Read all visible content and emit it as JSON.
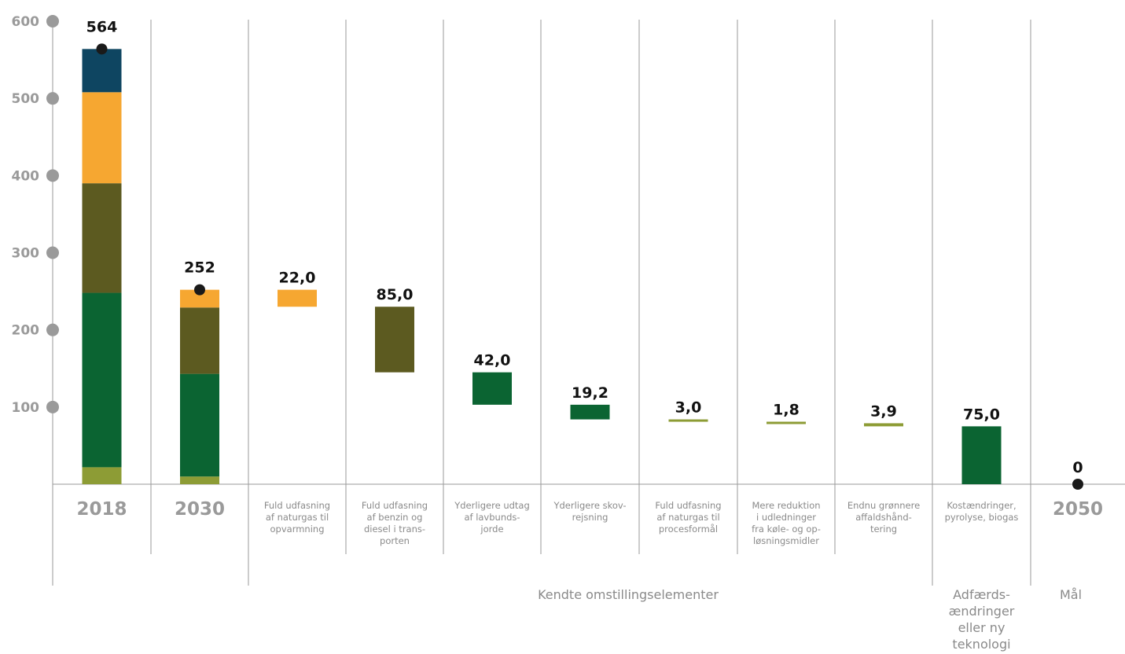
{
  "chart_data": {
    "type": "bar",
    "ylim": [
      0,
      600
    ],
    "yticks": [
      100,
      200,
      300,
      400,
      500,
      600
    ],
    "colors": {
      "dark_blue": "#0e4561",
      "orange": "#f6a731",
      "olive": "#5c5a20",
      "green": "#0b6432",
      "light_olive": "#8d9c35",
      "marker": "#1a1a1a",
      "axis": "#9a9a9a"
    },
    "stacks": [
      {
        "label": "2018",
        "total_label": "564",
        "total": 564,
        "segments": [
          {
            "value": 22,
            "color": "light_olive"
          },
          {
            "value": 226,
            "color": "green"
          },
          {
            "value": 142,
            "color": "olive"
          },
          {
            "value": 118,
            "color": "orange"
          },
          {
            "value": 56,
            "color": "dark_blue"
          }
        ]
      },
      {
        "label": "2030",
        "total_label": "252",
        "total": 252,
        "segments": [
          {
            "value": 10,
            "color": "light_olive"
          },
          {
            "value": 133,
            "color": "green"
          },
          {
            "value": 86,
            "color": "olive"
          },
          {
            "value": 23,
            "color": "orange"
          }
        ]
      }
    ],
    "steps": [
      {
        "label_lines": [
          "Fuld udfasning",
          "af naturgas til",
          "opvarmning"
        ],
        "value_label": "22,0",
        "value": 22.0,
        "from": 252,
        "to": 230,
        "color": "orange"
      },
      {
        "label_lines": [
          "Fuld udfasning",
          "af benzin og",
          "diesel i trans-",
          "porten"
        ],
        "value_label": "85,0",
        "value": 85.0,
        "from": 230,
        "to": 145,
        "color": "olive"
      },
      {
        "label_lines": [
          "Yderligere udtag",
          "af lavbunds-",
          "jorde"
        ],
        "value_label": "42,0",
        "value": 42.0,
        "from": 145,
        "to": 103,
        "color": "green"
      },
      {
        "label_lines": [
          "Yderligere skov-",
          "rejsning"
        ],
        "value_label": "19,2",
        "value": 19.2,
        "from": 103,
        "to": 84,
        "color": "green"
      },
      {
        "label_lines": [
          "Fuld udfasning",
          "af naturgas til",
          "procesformål"
        ],
        "value_label": "3,0",
        "value": 3.0,
        "from": 84,
        "to": 81,
        "color": "light_olive"
      },
      {
        "label_lines": [
          "Mere reduktion",
          "i udledninger",
          "fra køle- og op-",
          "løsningsmidler"
        ],
        "value_label": "1,8",
        "value": 1.8,
        "from": 81,
        "to": 79,
        "color": "light_olive"
      },
      {
        "label_lines": [
          "Endnu grønnere",
          "affaldshånd-",
          "tering"
        ],
        "value_label": "3,9",
        "value": 3.9,
        "from": 79,
        "to": 75,
        "color": "light_olive"
      },
      {
        "label_lines": [
          "Kostændringer,",
          "pyrolyse, biogas"
        ],
        "value_label": "75,0",
        "value": 75.0,
        "from": 75,
        "to": 0,
        "color": "green"
      }
    ],
    "goal": {
      "label": "2050",
      "value": 0,
      "value_label": "0"
    },
    "groups": [
      {
        "label_lines": [
          "Kendte omstillingselementer"
        ]
      },
      {
        "label_lines": [
          "Adfærds-",
          "ændringer",
          "eller ny",
          "teknologi"
        ]
      },
      {
        "label_lines": [
          "Mål"
        ]
      }
    ]
  }
}
